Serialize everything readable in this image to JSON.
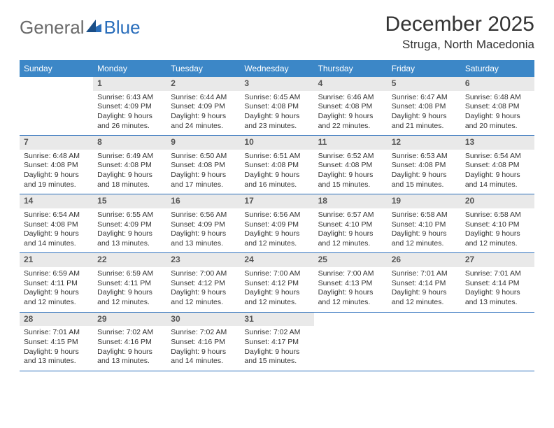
{
  "logo": {
    "word1": "General",
    "word2": "Blue"
  },
  "header": {
    "title": "December 2025",
    "subtitle": "Struga, North Macedonia"
  },
  "colors": {
    "header_bg": "#3c87c7",
    "header_text": "#ffffff",
    "daynum_bg": "#e9e9e9",
    "rule": "#2a6ebb",
    "text": "#333333",
    "logo_gray": "#6a6a6a",
    "logo_blue": "#2a6ebb"
  },
  "dow": [
    "Sunday",
    "Monday",
    "Tuesday",
    "Wednesday",
    "Thursday",
    "Friday",
    "Saturday"
  ],
  "weeks": [
    [
      {
        "n": "",
        "lines": []
      },
      {
        "n": "1",
        "lines": [
          "Sunrise: 6:43 AM",
          "Sunset: 4:09 PM",
          "Daylight: 9 hours and 26 minutes."
        ]
      },
      {
        "n": "2",
        "lines": [
          "Sunrise: 6:44 AM",
          "Sunset: 4:09 PM",
          "Daylight: 9 hours and 24 minutes."
        ]
      },
      {
        "n": "3",
        "lines": [
          "Sunrise: 6:45 AM",
          "Sunset: 4:08 PM",
          "Daylight: 9 hours and 23 minutes."
        ]
      },
      {
        "n": "4",
        "lines": [
          "Sunrise: 6:46 AM",
          "Sunset: 4:08 PM",
          "Daylight: 9 hours and 22 minutes."
        ]
      },
      {
        "n": "5",
        "lines": [
          "Sunrise: 6:47 AM",
          "Sunset: 4:08 PM",
          "Daylight: 9 hours and 21 minutes."
        ]
      },
      {
        "n": "6",
        "lines": [
          "Sunrise: 6:48 AM",
          "Sunset: 4:08 PM",
          "Daylight: 9 hours and 20 minutes."
        ]
      }
    ],
    [
      {
        "n": "7",
        "lines": [
          "Sunrise: 6:48 AM",
          "Sunset: 4:08 PM",
          "Daylight: 9 hours and 19 minutes."
        ]
      },
      {
        "n": "8",
        "lines": [
          "Sunrise: 6:49 AM",
          "Sunset: 4:08 PM",
          "Daylight: 9 hours and 18 minutes."
        ]
      },
      {
        "n": "9",
        "lines": [
          "Sunrise: 6:50 AM",
          "Sunset: 4:08 PM",
          "Daylight: 9 hours and 17 minutes."
        ]
      },
      {
        "n": "10",
        "lines": [
          "Sunrise: 6:51 AM",
          "Sunset: 4:08 PM",
          "Daylight: 9 hours and 16 minutes."
        ]
      },
      {
        "n": "11",
        "lines": [
          "Sunrise: 6:52 AM",
          "Sunset: 4:08 PM",
          "Daylight: 9 hours and 15 minutes."
        ]
      },
      {
        "n": "12",
        "lines": [
          "Sunrise: 6:53 AM",
          "Sunset: 4:08 PM",
          "Daylight: 9 hours and 15 minutes."
        ]
      },
      {
        "n": "13",
        "lines": [
          "Sunrise: 6:54 AM",
          "Sunset: 4:08 PM",
          "Daylight: 9 hours and 14 minutes."
        ]
      }
    ],
    [
      {
        "n": "14",
        "lines": [
          "Sunrise: 6:54 AM",
          "Sunset: 4:08 PM",
          "Daylight: 9 hours and 14 minutes."
        ]
      },
      {
        "n": "15",
        "lines": [
          "Sunrise: 6:55 AM",
          "Sunset: 4:09 PM",
          "Daylight: 9 hours and 13 minutes."
        ]
      },
      {
        "n": "16",
        "lines": [
          "Sunrise: 6:56 AM",
          "Sunset: 4:09 PM",
          "Daylight: 9 hours and 13 minutes."
        ]
      },
      {
        "n": "17",
        "lines": [
          "Sunrise: 6:56 AM",
          "Sunset: 4:09 PM",
          "Daylight: 9 hours and 12 minutes."
        ]
      },
      {
        "n": "18",
        "lines": [
          "Sunrise: 6:57 AM",
          "Sunset: 4:10 PM",
          "Daylight: 9 hours and 12 minutes."
        ]
      },
      {
        "n": "19",
        "lines": [
          "Sunrise: 6:58 AM",
          "Sunset: 4:10 PM",
          "Daylight: 9 hours and 12 minutes."
        ]
      },
      {
        "n": "20",
        "lines": [
          "Sunrise: 6:58 AM",
          "Sunset: 4:10 PM",
          "Daylight: 9 hours and 12 minutes."
        ]
      }
    ],
    [
      {
        "n": "21",
        "lines": [
          "Sunrise: 6:59 AM",
          "Sunset: 4:11 PM",
          "Daylight: 9 hours and 12 minutes."
        ]
      },
      {
        "n": "22",
        "lines": [
          "Sunrise: 6:59 AM",
          "Sunset: 4:11 PM",
          "Daylight: 9 hours and 12 minutes."
        ]
      },
      {
        "n": "23",
        "lines": [
          "Sunrise: 7:00 AM",
          "Sunset: 4:12 PM",
          "Daylight: 9 hours and 12 minutes."
        ]
      },
      {
        "n": "24",
        "lines": [
          "Sunrise: 7:00 AM",
          "Sunset: 4:12 PM",
          "Daylight: 9 hours and 12 minutes."
        ]
      },
      {
        "n": "25",
        "lines": [
          "Sunrise: 7:00 AM",
          "Sunset: 4:13 PM",
          "Daylight: 9 hours and 12 minutes."
        ]
      },
      {
        "n": "26",
        "lines": [
          "Sunrise: 7:01 AM",
          "Sunset: 4:14 PM",
          "Daylight: 9 hours and 12 minutes."
        ]
      },
      {
        "n": "27",
        "lines": [
          "Sunrise: 7:01 AM",
          "Sunset: 4:14 PM",
          "Daylight: 9 hours and 13 minutes."
        ]
      }
    ],
    [
      {
        "n": "28",
        "lines": [
          "Sunrise: 7:01 AM",
          "Sunset: 4:15 PM",
          "Daylight: 9 hours and 13 minutes."
        ]
      },
      {
        "n": "29",
        "lines": [
          "Sunrise: 7:02 AM",
          "Sunset: 4:16 PM",
          "Daylight: 9 hours and 13 minutes."
        ]
      },
      {
        "n": "30",
        "lines": [
          "Sunrise: 7:02 AM",
          "Sunset: 4:16 PM",
          "Daylight: 9 hours and 14 minutes."
        ]
      },
      {
        "n": "31",
        "lines": [
          "Sunrise: 7:02 AM",
          "Sunset: 4:17 PM",
          "Daylight: 9 hours and 15 minutes."
        ]
      },
      {
        "n": "",
        "lines": []
      },
      {
        "n": "",
        "lines": []
      },
      {
        "n": "",
        "lines": []
      }
    ]
  ]
}
